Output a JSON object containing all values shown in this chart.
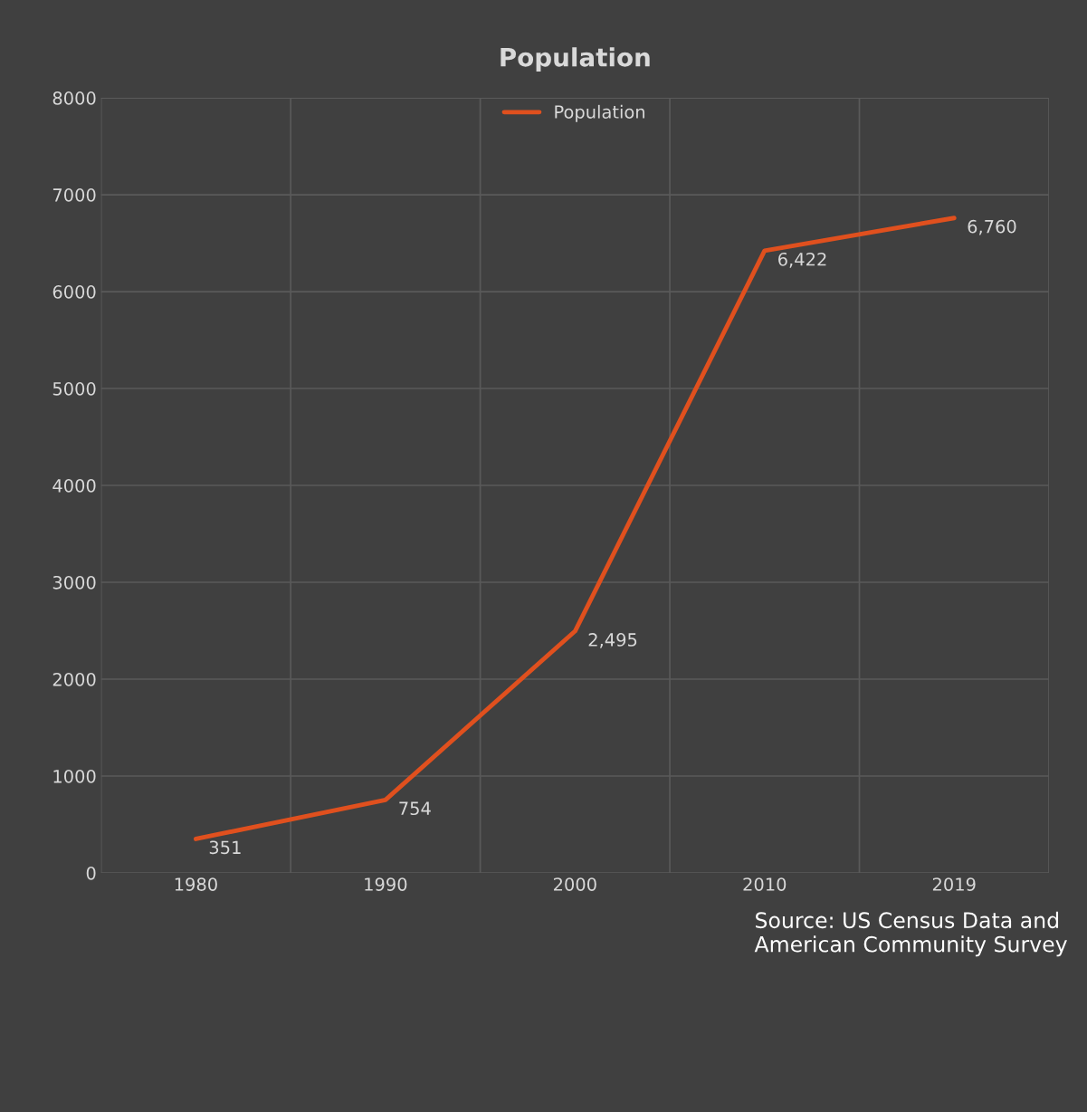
{
  "chart_data": {
    "type": "line",
    "title": "Population",
    "categories": [
      "1980",
      "1990",
      "2000",
      "2010",
      "2019"
    ],
    "series": [
      {
        "name": "Population",
        "color": "#e0501e",
        "values": [
          351,
          754,
          2495,
          6422,
          6760
        ],
        "value_labels": [
          "351",
          "754",
          "2,495",
          "6,422",
          "6,760"
        ]
      }
    ],
    "ylim": [
      0,
      8000
    ],
    "yticks": [
      0,
      1000,
      2000,
      3000,
      4000,
      5000,
      6000,
      7000,
      8000
    ],
    "grid": true,
    "legend": "top",
    "marker": "none",
    "line_style": "solid",
    "annotations": [
      "Source: US Census Data and American Community Survey"
    ]
  }
}
